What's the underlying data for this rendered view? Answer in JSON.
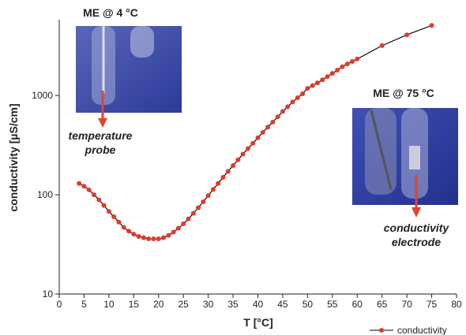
{
  "chart_data": {
    "type": "line",
    "x_label": "T [°C]",
    "y_label": "conductivity [µS/cm]",
    "x": [
      4,
      5,
      6,
      7,
      8,
      9,
      10,
      11,
      12,
      13,
      14,
      15,
      16,
      17,
      18,
      19,
      20,
      21,
      22,
      23,
      24,
      25,
      26,
      27,
      28,
      29,
      30,
      31,
      32,
      33,
      34,
      35,
      36,
      37,
      38,
      39,
      40,
      41,
      42,
      43,
      44,
      45,
      46,
      47,
      48,
      49,
      50,
      51,
      52,
      53,
      54,
      55,
      56,
      57,
      58,
      59,
      60,
      65,
      70,
      75
    ],
    "series": [
      {
        "name": "conductivity",
        "color": "#e03a2a",
        "line_color": "#000000",
        "values": [
          130,
          122,
          112,
          100,
          89,
          78,
          68,
          60,
          53,
          47,
          43,
          40,
          38,
          37,
          36,
          36,
          36,
          37,
          39,
          42,
          46,
          51,
          57,
          65,
          74,
          85,
          98,
          113,
          130,
          150,
          172,
          197,
          225,
          257,
          292,
          330,
          375,
          425,
          480,
          540,
          610,
          690,
          770,
          860,
          950,
          1040,
          1180,
          1260,
          1340,
          1440,
          1550,
          1670,
          1800,
          1950,
          2080,
          2200,
          2330,
          3180,
          4080,
          5080
        ]
      }
    ],
    "xlim": [
      0,
      80
    ],
    "xticks": [
      0,
      5,
      10,
      15,
      20,
      25,
      30,
      35,
      40,
      45,
      50,
      55,
      60,
      65,
      70,
      75,
      80
    ],
    "ylim": [
      10,
      5800
    ],
    "yticks": [
      10,
      100,
      1000
    ],
    "log_y": true,
    "legend": "bottom-right",
    "annotations": [
      "ME @ 4 °C",
      "temperature",
      "probe",
      "ME @ 75 °C",
      "conductivity",
      "electrode"
    ]
  }
}
